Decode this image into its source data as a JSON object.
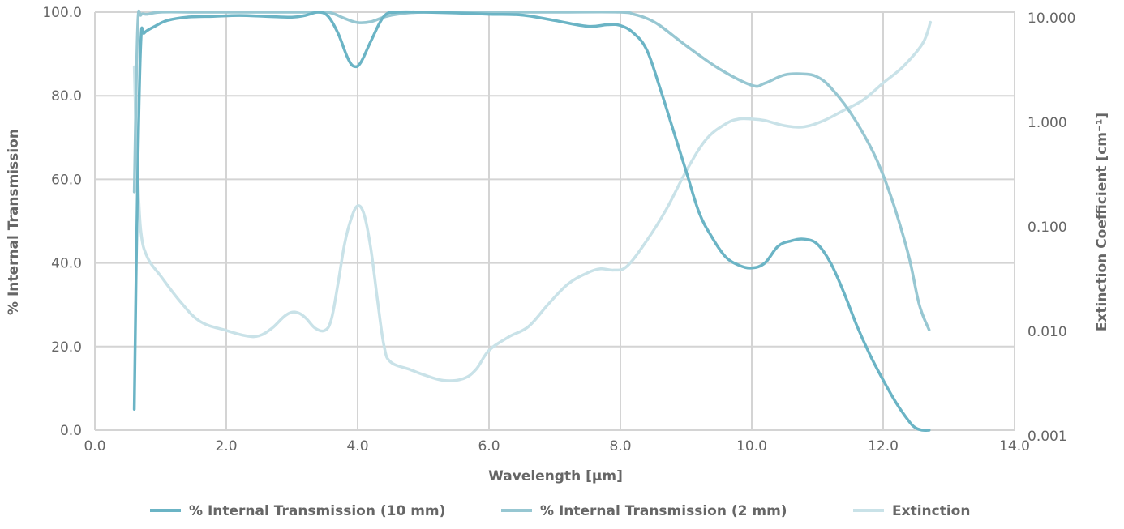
{
  "chart_data": {
    "type": "line",
    "title": "",
    "xlabel": "Wavelength [µm]",
    "ylabel": "% Internal Transmission",
    "y2label": "Extinction Coefficient [cm⁻¹]",
    "xlim": [
      0,
      14
    ],
    "ylim": [
      0,
      100
    ],
    "y2lim": [
      0.001,
      10
    ],
    "y2scale": "log",
    "grid": true,
    "legend_position": "bottom",
    "x_ticks": [
      "0.0",
      "2.0",
      "4.0",
      "6.0",
      "8.0",
      "10.0",
      "12.0",
      "14.0"
    ],
    "y_ticks": [
      "0.0",
      "20.0",
      "40.0",
      "60.0",
      "80.0",
      "100.0"
    ],
    "y2_ticks": [
      "0.001",
      "0.010",
      "0.100",
      "1.000",
      "10.000"
    ],
    "series": [
      {
        "name": "% Internal Transmission (10 mm)",
        "axis": "left",
        "color": "#6bb4c5",
        "x": [
          0.6,
          0.65,
          0.7,
          0.75,
          0.9,
          1.1,
          1.4,
          1.8,
          2.2,
          2.6,
          3.0,
          3.2,
          3.4,
          3.55,
          3.7,
          3.85,
          3.95,
          4.05,
          4.2,
          4.4,
          4.6,
          5.0,
          5.5,
          6.0,
          6.5,
          7.0,
          7.5,
          7.8,
          8.0,
          8.2,
          8.4,
          8.6,
          8.8,
          9.0,
          9.2,
          9.4,
          9.6,
          9.8,
          10.0,
          10.2,
          10.4,
          10.6,
          10.8,
          11.0,
          11.2,
          11.4,
          11.6,
          11.8,
          12.0,
          12.2,
          12.4,
          12.5,
          12.6,
          12.7
        ],
        "values": [
          5,
          60,
          93,
          95,
          96.5,
          98,
          98.8,
          99,
          99.2,
          99,
          98.8,
          99.2,
          100,
          99,
          95,
          89,
          87,
          88,
          93,
          99,
          100,
          100,
          99.8,
          99.5,
          99.3,
          98,
          96.6,
          97,
          96.8,
          95,
          91,
          82,
          72,
          62,
          52,
          46,
          41.5,
          39.5,
          38.8,
          40,
          44,
          45.3,
          45.7,
          44.5,
          40,
          33,
          25,
          18,
          12,
          6.5,
          2,
          0.5,
          0,
          0
        ]
      },
      {
        "name": "% Internal Transmission (2 mm)",
        "axis": "left",
        "color": "#97c7d2",
        "x": [
          0.6,
          0.65,
          0.7,
          0.8,
          1.0,
          1.5,
          2.0,
          2.5,
          3.0,
          3.4,
          3.6,
          3.8,
          4.0,
          4.2,
          4.4,
          4.6,
          5.0,
          6.0,
          7.0,
          8.0,
          8.2,
          8.4,
          8.6,
          9.0,
          9.5,
          10.0,
          10.2,
          10.5,
          10.8,
          11.0,
          11.2,
          11.5,
          11.8,
          12.0,
          12.2,
          12.4,
          12.55,
          12.7
        ],
        "values": [
          57,
          96,
          99.3,
          99.5,
          100,
          100,
          100,
          100,
          100,
          100,
          99.8,
          98.5,
          97.5,
          97.7,
          98.8,
          99.5,
          100,
          100,
          100,
          100,
          99.5,
          98.5,
          96.8,
          92,
          86.5,
          82.5,
          83,
          85,
          85.2,
          84.5,
          82,
          76,
          68,
          61,
          52,
          41,
          30,
          24
        ]
      },
      {
        "name": "Extinction",
        "axis": "right",
        "color": "#c9e2e8",
        "x": [
          0.6,
          0.62,
          0.65,
          0.7,
          0.8,
          1.0,
          1.3,
          1.6,
          2.0,
          2.3,
          2.5,
          2.7,
          2.9,
          3.05,
          3.2,
          3.35,
          3.5,
          3.6,
          3.7,
          3.8,
          3.9,
          4.0,
          4.1,
          4.2,
          4.3,
          4.4,
          4.5,
          4.8,
          5.0,
          5.3,
          5.6,
          5.8,
          6.0,
          6.3,
          6.6,
          6.9,
          7.2,
          7.5,
          7.7,
          7.9,
          8.1,
          8.4,
          8.7,
          9.0,
          9.3,
          9.6,
          9.8,
          10.0,
          10.2,
          10.5,
          10.8,
          11.1,
          11.4,
          11.7,
          12.0,
          12.3,
          12.6,
          12.72
        ],
        "values": [
          3.0,
          1.0,
          0.3,
          0.08,
          0.045,
          0.03,
          0.017,
          0.011,
          0.009,
          0.008,
          0.008,
          0.0095,
          0.0125,
          0.0135,
          0.012,
          0.0095,
          0.009,
          0.0115,
          0.025,
          0.06,
          0.105,
          0.14,
          0.115,
          0.055,
          0.018,
          0.0065,
          0.0045,
          0.0038,
          0.0034,
          0.003,
          0.0031,
          0.0038,
          0.0058,
          0.0078,
          0.0098,
          0.016,
          0.025,
          0.032,
          0.035,
          0.034,
          0.037,
          0.065,
          0.13,
          0.3,
          0.6,
          0.85,
          0.95,
          0.95,
          0.92,
          0.82,
          0.8,
          0.92,
          1.15,
          1.45,
          2.1,
          3.0,
          5.0,
          8.0
        ]
      }
    ]
  }
}
